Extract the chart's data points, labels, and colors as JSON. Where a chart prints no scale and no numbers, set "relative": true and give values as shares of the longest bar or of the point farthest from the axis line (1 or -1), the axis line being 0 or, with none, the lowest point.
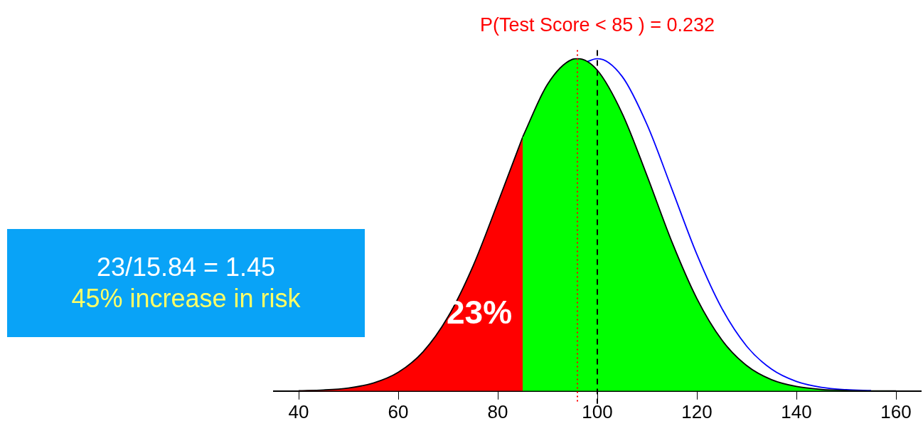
{
  "chart_data": {
    "type": "area",
    "title": "P(Test Score < 85 ) = 0.232",
    "relative": true,
    "xlim": [
      35,
      165
    ],
    "xticks": [
      40,
      60,
      80,
      100,
      120,
      140,
      160
    ],
    "series": [
      {
        "type": "line",
        "color": "#0000ff",
        "x": [
          98,
          100,
          105,
          110,
          115,
          120,
          125,
          130,
          135,
          140,
          145,
          150,
          155
        ],
        "values": [
          0.991,
          1,
          0.946,
          0.801,
          0.607,
          0.411,
          0.249,
          0.135,
          0.0657,
          0.0286,
          0.0111,
          0.0039,
          0.0012
        ]
      },
      {
        "color": "#ff0000",
        "x": [
          40,
          45,
          50,
          55,
          60,
          65,
          70,
          75,
          80,
          85
        ],
        "values": [
          0.001,
          0.0031,
          0.0091,
          0.0239,
          0.0561,
          0.118,
          0.223,
          0.375,
          0.566,
          0.764
        ]
      },
      {
        "color": "#00ff00",
        "x": [
          85,
          90,
          95,
          96,
          100,
          105,
          110,
          115,
          120,
          125,
          130,
          135,
          140,
          145,
          150,
          155,
          160
        ],
        "values": [
          0.764,
          0.923,
          0.998,
          1,
          0.965,
          0.835,
          0.647,
          0.448,
          0.278,
          0.154,
          0.0766,
          0.034,
          0.0135,
          0.0048,
          0.0015,
          0.0004,
          0.0001
        ]
      }
    ],
    "ref_lines": [
      {
        "axis": "x",
        "value": 96,
        "color": "#ff0000",
        "line_style": "dotted"
      },
      {
        "axis": "x",
        "value": 100,
        "color": "#000000",
        "line_style": "dashed"
      }
    ],
    "annotations": [
      "23/15.84 = 1.45",
      "45% increase in risk",
      "23%"
    ],
    "grid": false,
    "legend": false,
    "marker": "none",
    "tick_labels": "x"
  }
}
